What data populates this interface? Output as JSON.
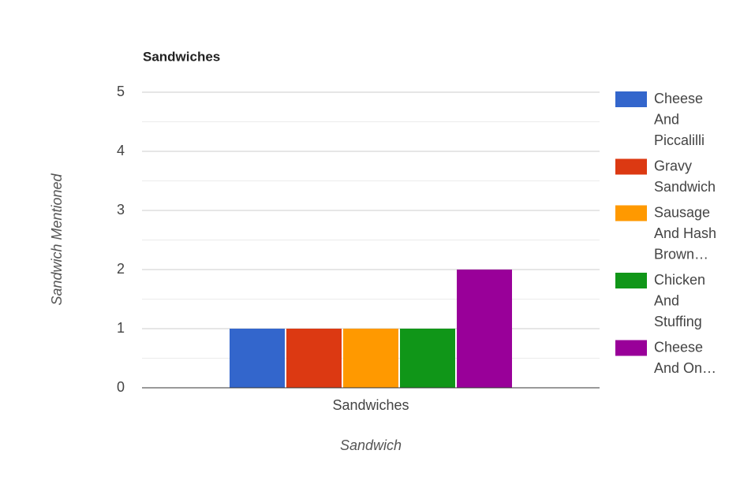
{
  "chart_data": {
    "type": "bar",
    "title": "Sandwiches",
    "x_label": "Sandwich",
    "y_label": "Sandwich Mentioned",
    "categories": [
      "Sandwiches"
    ],
    "series": [
      {
        "name": "Cheese And Piccalilli",
        "color": "#3366cc",
        "values": [
          1
        ]
      },
      {
        "name": "Gravy Sandwich",
        "color": "#dc3912",
        "values": [
          1
        ]
      },
      {
        "name": "Sausage And Hash Brown…",
        "color": "#ff9900",
        "values": [
          1
        ]
      },
      {
        "name": "Chicken And Stuffing",
        "color": "#109618",
        "values": [
          1
        ]
      },
      {
        "name": "Cheese And On…",
        "color": "#990099",
        "values": [
          2
        ]
      }
    ],
    "ylim": [
      0,
      5
    ],
    "yticks": [
      0,
      1,
      2,
      3,
      4,
      5
    ],
    "minor_yticks": [
      0.5,
      1.5,
      2.5,
      3.5,
      4.5
    ],
    "grid": true,
    "legend": "right"
  }
}
